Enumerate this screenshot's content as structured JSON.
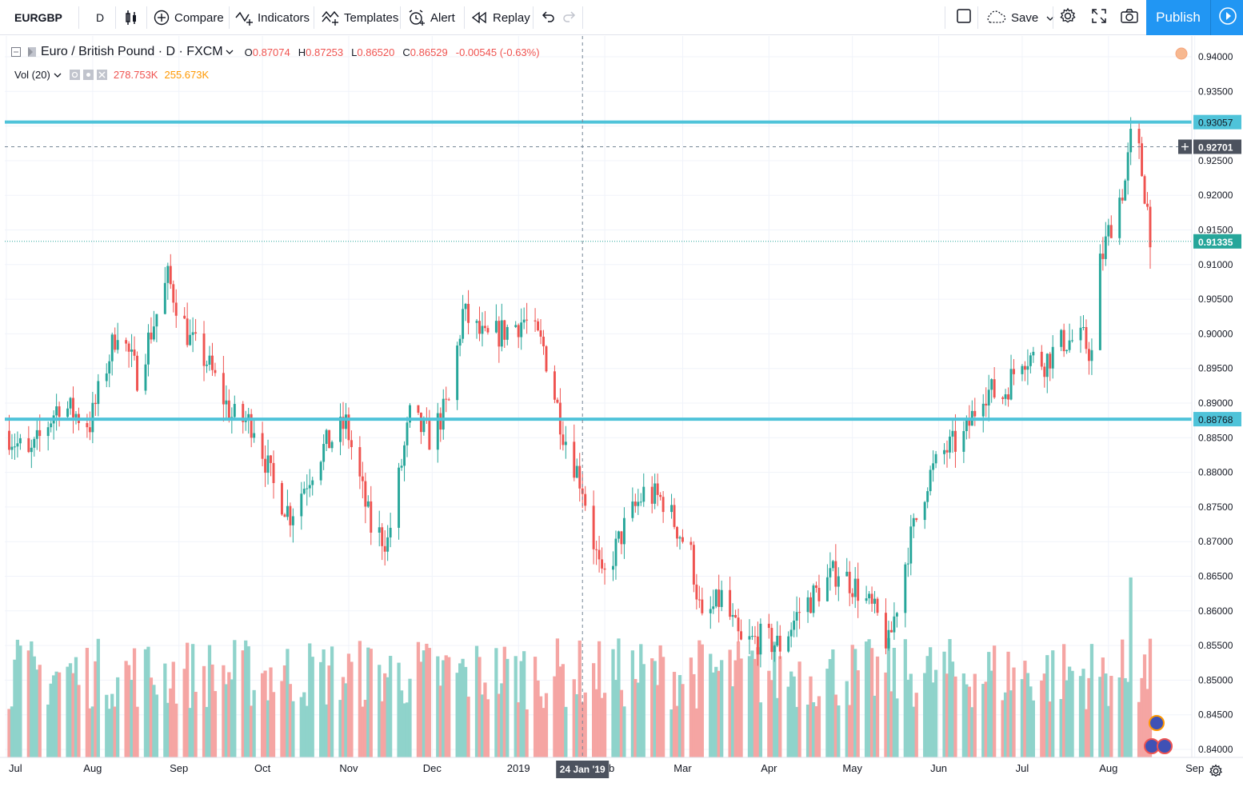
{
  "toolbar": {
    "symbol": "EURGBP",
    "interval": "D",
    "compare": "Compare",
    "indicators": "Indicators",
    "templates": "Templates",
    "alert": "Alert",
    "replay": "Replay",
    "save": "Save",
    "publish": "Publish"
  },
  "legend": {
    "title": "Euro / British Pound · D · FXCM",
    "open_label": "O",
    "open": "0.87074",
    "high_label": "H",
    "high": "0.87253",
    "low_label": "L",
    "low": "0.86520",
    "close_label": "C",
    "close": "0.86529",
    "change": "-0.00545 (-0.63%)",
    "vol_label": "Vol (20)",
    "vol_value": "278.753K",
    "vol_ma": "255.673K"
  },
  "colors": {
    "up": "#26a69a",
    "down": "#ef5350",
    "up_vol": "#8fd3cb",
    "down_vol": "#f5a5a3",
    "hline": "#4fc3d9",
    "vol_ma": "#ff9800",
    "accent": "#2196f3"
  },
  "chart_data": {
    "type": "candlestick",
    "y_range": [
      0.8385,
      0.9415
    ],
    "y_ticks": [
      "0.94000",
      "0.93500",
      "0.93057",
      "0.92701",
      "0.92500",
      "0.92000",
      "0.91500",
      "0.91335",
      "0.91000",
      "0.90500",
      "0.90000",
      "0.89500",
      "0.89000",
      "0.88768",
      "0.88500",
      "0.88000",
      "0.87500",
      "0.87000",
      "0.86500",
      "0.86000",
      "0.85500",
      "0.85000",
      "0.84500",
      "0.84000"
    ],
    "x_labels": [
      "Jul",
      "Aug",
      "Sep",
      "Oct",
      "Nov",
      "Dec",
      "2019",
      "Feb",
      "Mar",
      "Apr",
      "May",
      "Jun",
      "Jul",
      "Aug",
      "Sep"
    ],
    "horizontal_lines": [
      {
        "label": "0.93057",
        "value": 0.93057
      },
      {
        "label": "0.88768",
        "value": 0.88768
      }
    ],
    "crosshair": {
      "price_label": "0.92701",
      "price": 0.92701,
      "date_label": "24 Jan '19"
    },
    "last_price": {
      "label": "0.91335",
      "value": 0.91335
    },
    "anchors": [
      {
        "date": "2018-07-01",
        "close": 0.886
      },
      {
        "date": "2018-07-09",
        "close": 0.882
      },
      {
        "date": "2018-07-20",
        "close": 0.89
      },
      {
        "date": "2018-07-31",
        "close": 0.887
      },
      {
        "date": "2018-08-10",
        "close": 0.901
      },
      {
        "date": "2018-08-17",
        "close": 0.894
      },
      {
        "date": "2018-08-28",
        "close": 0.908
      },
      {
        "date": "2018-09-05",
        "close": 0.899
      },
      {
        "date": "2018-09-11",
        "close": 0.896
      },
      {
        "date": "2018-09-20",
        "close": 0.888
      },
      {
        "date": "2018-09-28",
        "close": 0.887
      },
      {
        "date": "2018-10-05",
        "close": 0.878
      },
      {
        "date": "2018-10-11",
        "close": 0.874
      },
      {
        "date": "2018-10-22",
        "close": 0.883
      },
      {
        "date": "2018-10-31",
        "close": 0.887
      },
      {
        "date": "2018-11-09",
        "close": 0.872
      },
      {
        "date": "2018-11-15",
        "close": 0.87
      },
      {
        "date": "2018-11-23",
        "close": 0.888
      },
      {
        "date": "2018-11-30",
        "close": 0.885
      },
      {
        "date": "2018-12-07",
        "close": 0.89
      },
      {
        "date": "2018-12-12",
        "close": 0.903
      },
      {
        "date": "2018-12-20",
        "close": 0.899
      },
      {
        "date": "2019-01-03",
        "close": 0.902
      },
      {
        "date": "2019-01-10",
        "close": 0.898
      },
      {
        "date": "2019-01-17",
        "close": 0.886
      },
      {
        "date": "2019-01-24",
        "close": 0.878
      },
      {
        "date": "2019-01-31",
        "close": 0.864
      },
      {
        "date": "2019-02-08",
        "close": 0.872
      },
      {
        "date": "2019-02-15",
        "close": 0.877
      },
      {
        "date": "2019-02-22",
        "close": 0.876
      },
      {
        "date": "2019-03-04",
        "close": 0.868
      },
      {
        "date": "2019-03-08",
        "close": 0.858
      },
      {
        "date": "2019-03-15",
        "close": 0.862
      },
      {
        "date": "2019-03-22",
        "close": 0.855
      },
      {
        "date": "2019-03-29",
        "close": 0.856
      },
      {
        "date": "2019-04-05",
        "close": 0.855
      },
      {
        "date": "2019-04-12",
        "close": 0.86
      },
      {
        "date": "2019-04-19",
        "close": 0.863
      },
      {
        "date": "2019-04-26",
        "close": 0.866
      },
      {
        "date": "2019-05-03",
        "close": 0.863
      },
      {
        "date": "2019-05-10",
        "close": 0.859
      },
      {
        "date": "2019-05-14",
        "close": 0.855
      },
      {
        "date": "2019-05-21",
        "close": 0.869
      },
      {
        "date": "2019-05-28",
        "close": 0.879
      },
      {
        "date": "2019-06-03",
        "close": 0.883
      },
      {
        "date": "2019-06-10",
        "close": 0.885
      },
      {
        "date": "2019-06-17",
        "close": 0.892
      },
      {
        "date": "2019-06-24",
        "close": 0.891
      },
      {
        "date": "2019-07-01",
        "close": 0.897
      },
      {
        "date": "2019-07-09",
        "close": 0.896
      },
      {
        "date": "2019-07-16",
        "close": 0.899
      },
      {
        "date": "2019-07-23",
        "close": 0.899
      },
      {
        "date": "2019-07-26",
        "close": 0.897
      },
      {
        "date": "2019-07-29",
        "close": 0.91
      },
      {
        "date": "2019-08-02",
        "close": 0.916
      },
      {
        "date": "2019-08-07",
        "close": 0.922
      },
      {
        "date": "2019-08-09",
        "close": 0.928
      },
      {
        "date": "2019-08-12",
        "close": 0.926
      },
      {
        "date": "2019-08-15",
        "close": 0.918
      },
      {
        "date": "2019-08-16",
        "close": 0.9125
      }
    ],
    "volume_high_bar_date": "2019-08-09"
  }
}
